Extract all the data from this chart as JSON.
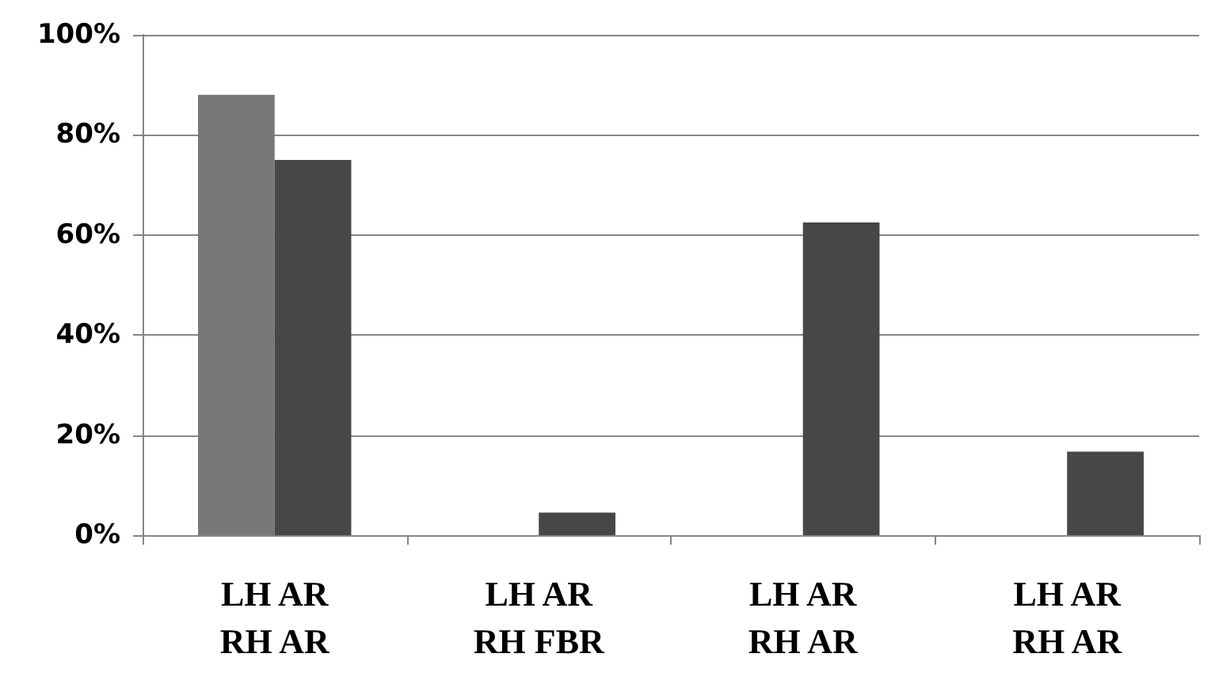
{
  "chart_data": {
    "type": "bar",
    "categories": [
      "LH AR\nRH AR",
      "LH AR\nRH FBR",
      "LH AR\nRH AR",
      "LH AR\nRH AR"
    ],
    "series": [
      {
        "color": "#777777",
        "values": [
          88,
          null,
          null,
          null
        ]
      },
      {
        "color": "#474747",
        "values": [
          75,
          4.5,
          62.5,
          16.7
        ]
      }
    ],
    "ylim": [
      0,
      100
    ],
    "yticks": [
      {
        "value": 0,
        "label": "0%"
      },
      {
        "value": 20,
        "label": "20%"
      },
      {
        "value": 40,
        "label": "40%"
      },
      {
        "value": 60,
        "label": "60%"
      },
      {
        "value": 80,
        "label": "80%"
      },
      {
        "value": 100,
        "label": "100%"
      }
    ],
    "grid": "y"
  }
}
